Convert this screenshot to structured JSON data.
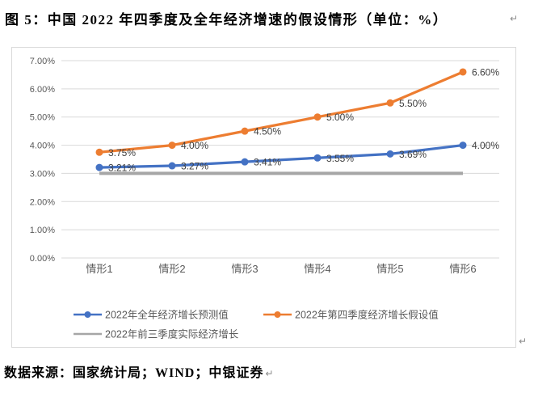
{
  "page": {
    "title": "图 5：中国 2022 年四季度及全年经济增速的假设情形（单位：%）",
    "source_note": "数据来源：国家统计局；WIND；中银证券",
    "paragraph_mark": "↵"
  },
  "chart_data": {
    "type": "line",
    "title": "",
    "categories": [
      "情形1",
      "情形2",
      "情形3",
      "情形4",
      "情形5",
      "情形6"
    ],
    "y_ticks": [
      "0.00%",
      "1.00%",
      "2.00%",
      "3.00%",
      "4.00%",
      "5.00%",
      "6.00%",
      "7.00%"
    ],
    "ylim": [
      0,
      7
    ],
    "grid": true,
    "legend_position": "bottom",
    "series": [
      {
        "name": "2022年全年经济增长预测值",
        "color": "#4472C4",
        "marker": true,
        "values": [
          3.21,
          3.27,
          3.41,
          3.55,
          3.69,
          4.0
        ],
        "data_labels": [
          "3.21%",
          "3.27%",
          "3.41%",
          "3.55%",
          "3.69%",
          "4.00%"
        ]
      },
      {
        "name": "2022年第四季度经济增长假设值",
        "color": "#ED7D31",
        "marker": true,
        "values": [
          3.75,
          4.0,
          4.5,
          5.0,
          5.5,
          6.6
        ],
        "data_labels": [
          "3.75%",
          "4.00%",
          "4.50%",
          "5.00%",
          "5.50%",
          "6.60%"
        ]
      },
      {
        "name": "2022年前三季度实际经济增长",
        "color": "#A6A6A6",
        "marker": false,
        "values": [
          3.0,
          3.0,
          3.0,
          3.0,
          3.0,
          3.0
        ],
        "data_labels": []
      }
    ],
    "gridline_color": "#D9D9D9",
    "axis_label_color": "#595959",
    "data_label_color": "#404040"
  }
}
